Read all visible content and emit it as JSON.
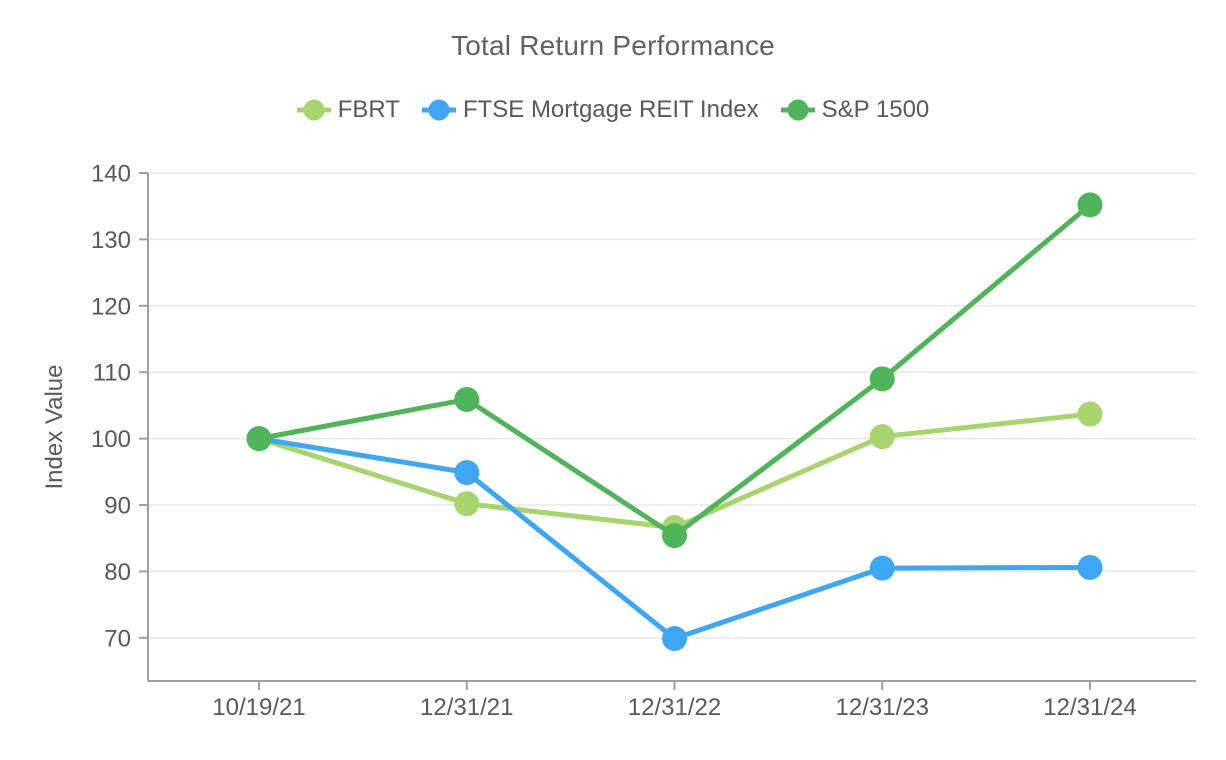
{
  "chart_data": {
    "type": "line",
    "title": "Total Return Performance",
    "ylabel": "Index Value",
    "xlabel": "",
    "categories": [
      "10/19/21",
      "12/31/21",
      "12/31/22",
      "12/31/23",
      "12/31/24"
    ],
    "series": [
      {
        "name": "FBRT",
        "color": "#a8d46e",
        "values": [
          100,
          90.2,
          86.6,
          100.3,
          103.7
        ]
      },
      {
        "name": "FTSE Mortgage REIT Index",
        "color": "#3ea6f2",
        "values": [
          100,
          94.9,
          69.9,
          80.5,
          80.6
        ]
      },
      {
        "name": "S&P 1500",
        "color": "#50b45a",
        "values": [
          100,
          105.9,
          85.4,
          109.0,
          135.2
        ]
      }
    ],
    "yticks": [
      70,
      80,
      90,
      100,
      110,
      120,
      130,
      140
    ],
    "ylim": [
      63.5,
      140
    ],
    "grid": true,
    "legend_position": "top"
  },
  "colors": {
    "title_text": "#606164",
    "tick_text": "#58595b",
    "axis_line": "#9ca0a3",
    "gridline": "#e8e8e8",
    "background": "#ffffff"
  }
}
